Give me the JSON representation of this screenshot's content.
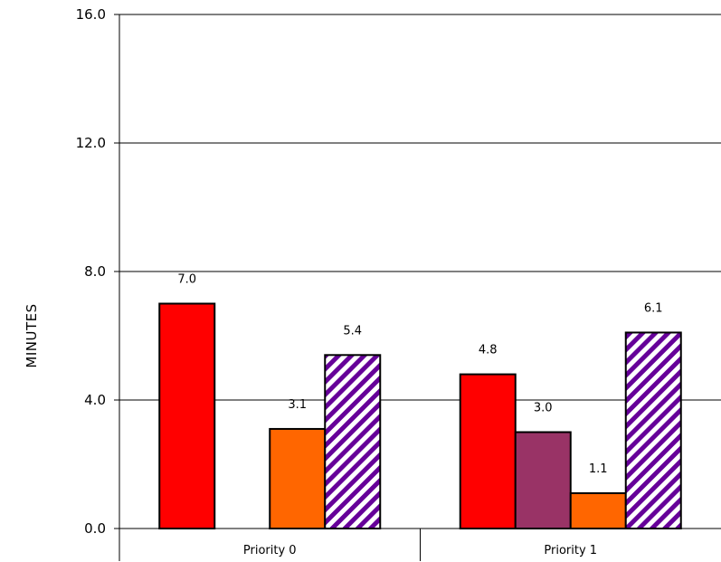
{
  "chart_data": {
    "type": "bar",
    "title": "",
    "xlabel": "",
    "ylabel": "MINUTES",
    "ylim": [
      0,
      16
    ],
    "yticks": [
      0,
      4,
      8,
      12,
      16
    ],
    "ytick_labels": [
      "0.0",
      "4.0",
      "8.0",
      "12.0",
      "16.0"
    ],
    "grid": "horizontal",
    "legend": "none",
    "categories": [
      "Priority 0",
      "Priority 1"
    ],
    "series": [
      {
        "color": "#ff0000",
        "pattern": "solid",
        "values": [
          7.0,
          4.8
        ],
        "labels": [
          "7.0",
          "4.8"
        ]
      },
      {
        "color": "#993366",
        "pattern": "solid",
        "values": [
          null,
          3.0
        ],
        "labels": [
          null,
          "3.0"
        ]
      },
      {
        "color": "#ff6600",
        "pattern": "solid",
        "values": [
          3.1,
          1.1
        ],
        "labels": [
          "3.1",
          "1.1"
        ]
      },
      {
        "color": "#660099",
        "pattern": "diagonal-stripes",
        "values": [
          5.4,
          6.1
        ],
        "labels": [
          "5.4",
          "6.1"
        ]
      }
    ]
  }
}
